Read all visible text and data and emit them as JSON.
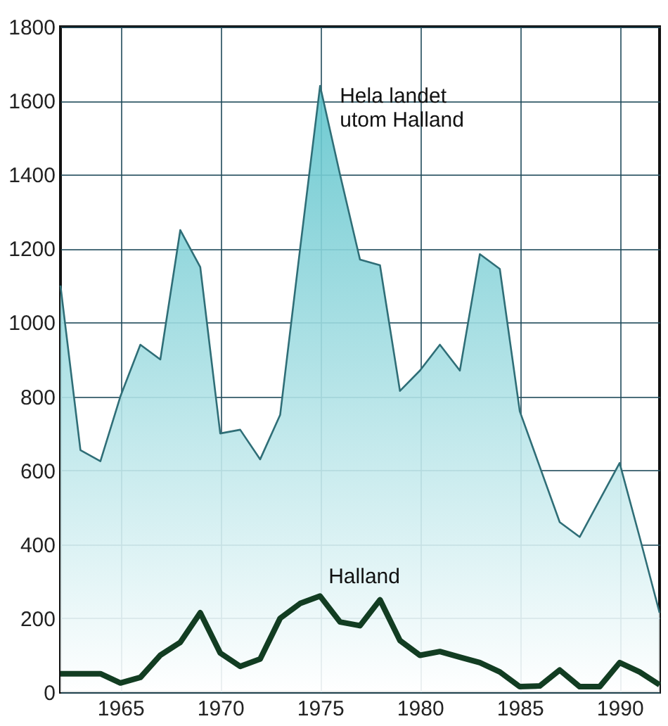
{
  "chart_data": {
    "type": "area",
    "x": [
      1962,
      1963,
      1964,
      1965,
      1966,
      1967,
      1968,
      1969,
      1970,
      1971,
      1972,
      1973,
      1974,
      1975,
      1976,
      1977,
      1978,
      1979,
      1980,
      1981,
      1982,
      1983,
      1984,
      1985,
      1986,
      1987,
      1988,
      1989,
      1990,
      1991,
      1992
    ],
    "series": [
      {
        "name": "Hela landet utom Halland",
        "color": "#5ec4cc",
        "values": [
          1100,
          655,
          625,
          800,
          940,
          900,
          1250,
          1150,
          700,
          710,
          630,
          750,
          1200,
          1640,
          1400,
          1170,
          1155,
          815,
          870,
          940,
          870,
          1185,
          1145,
          760,
          610,
          460,
          420,
          520,
          620,
          420,
          215
        ]
      },
      {
        "name": "Halland",
        "type": "line",
        "color": "#123d22",
        "values": [
          50,
          50,
          50,
          25,
          40,
          100,
          135,
          215,
          106,
          70,
          90,
          200,
          240,
          260,
          190,
          180,
          250,
          140,
          100,
          110,
          95,
          80,
          55,
          15,
          17,
          60,
          15,
          15,
          80,
          55,
          20
        ]
      }
    ],
    "xlim": [
      1962,
      1992
    ],
    "xticks": [
      1965,
      1970,
      1975,
      1980,
      1985,
      1990
    ],
    "ylim": [
      0,
      1800
    ],
    "yticks": [
      0,
      200,
      400,
      600,
      800,
      1000,
      1200,
      1400,
      1600,
      1800
    ],
    "grid": true,
    "marker": "none",
    "line_style": "solid"
  }
}
